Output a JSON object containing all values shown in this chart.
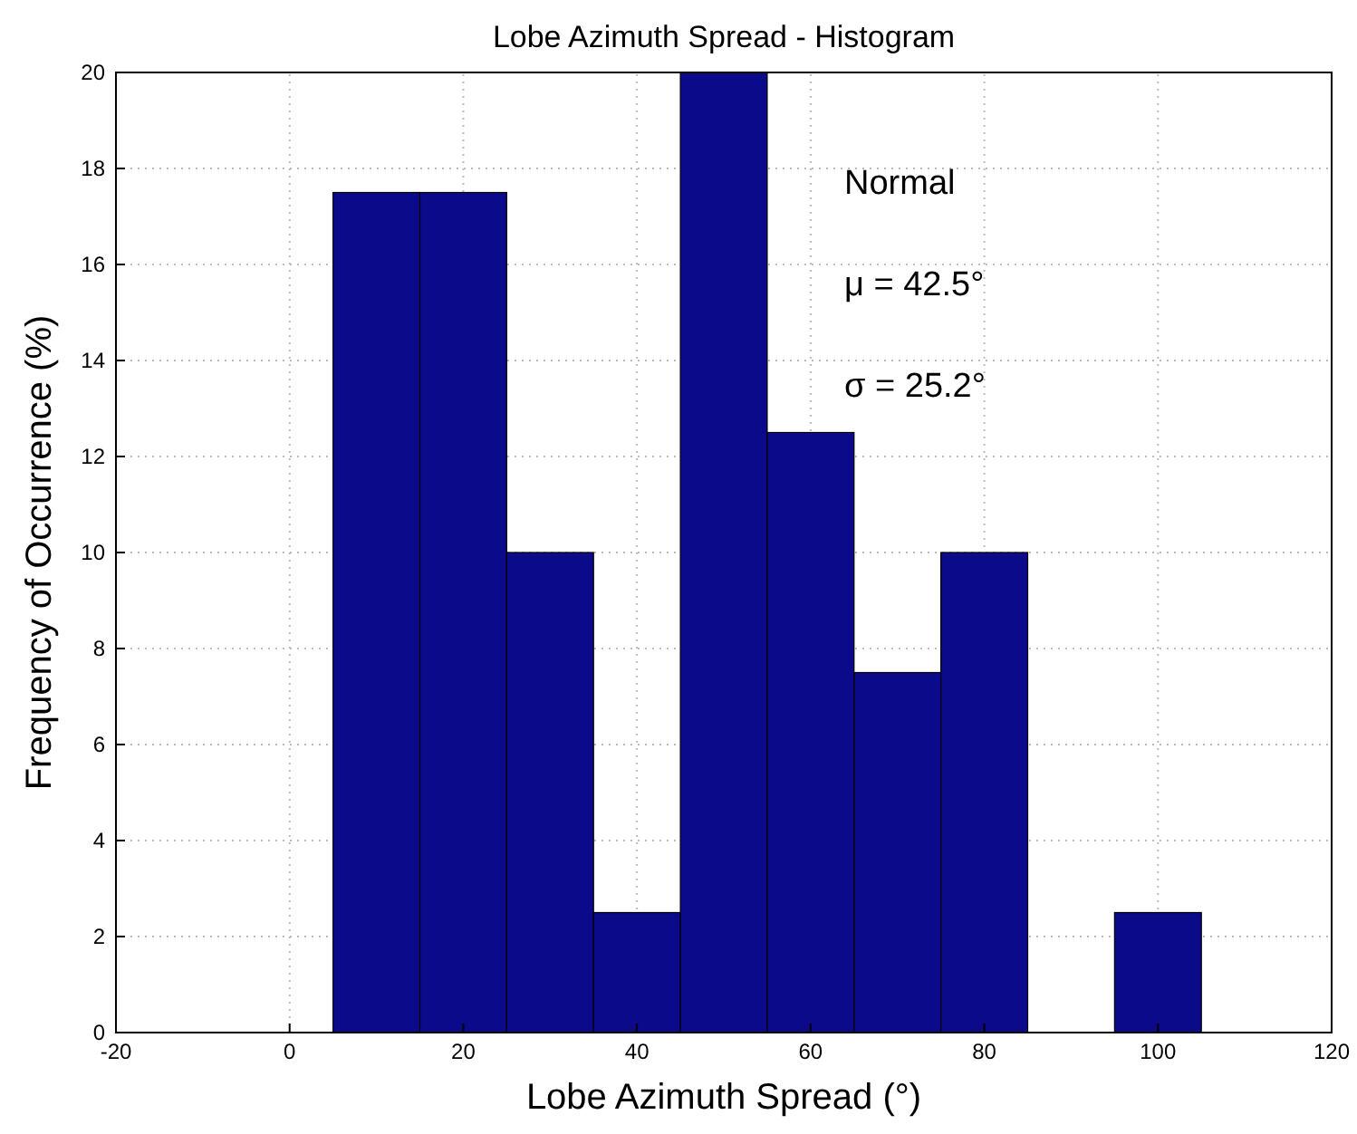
{
  "chart_data": {
    "type": "histogram",
    "title": "Lobe Azimuth Spread - Histogram",
    "xlabel": "Lobe Azimuth Spread (°)",
    "ylabel": "Frequency of Occurrence (%)",
    "bins": [
      5,
      15,
      25,
      35,
      45,
      55,
      65,
      75,
      85,
      95,
      105
    ],
    "values": [
      17.5,
      17.5,
      10,
      2.5,
      20,
      12.5,
      7.5,
      10,
      0,
      2.5
    ],
    "color": "#0a0a8a",
    "xlim": [
      -20,
      120
    ],
    "xticks": [
      -20,
      0,
      20,
      40,
      60,
      80,
      100,
      120
    ],
    "ylim": [
      0,
      20
    ],
    "yticks": [
      0,
      2,
      4,
      6,
      8,
      10,
      12,
      14,
      16,
      18,
      20
    ],
    "grid": true,
    "annotations": [
      "Normal",
      "μ = 42.5°",
      "σ = 25.2°"
    ]
  }
}
